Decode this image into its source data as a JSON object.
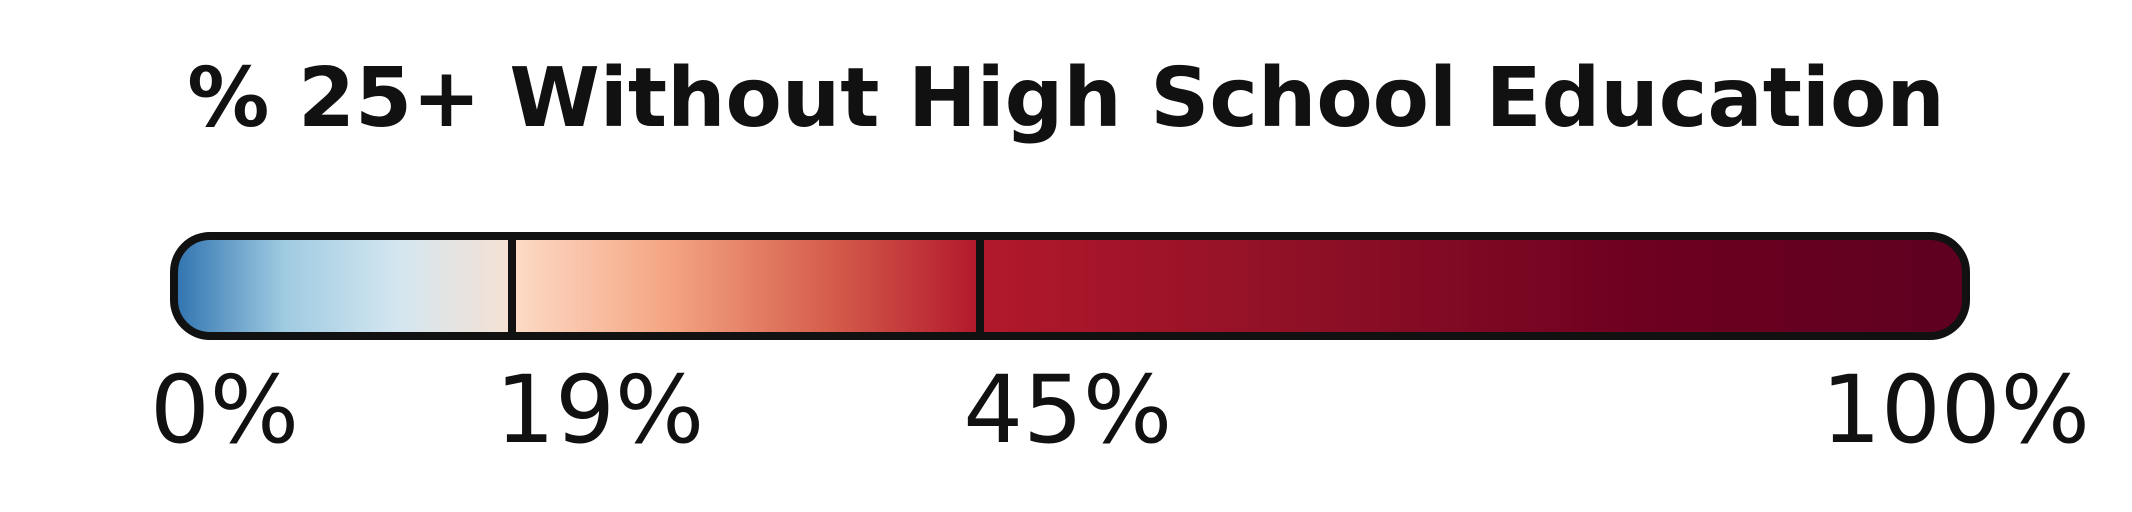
{
  "chart_data": {
    "type": "color-legend",
    "title": "% 25+ Without High School Education",
    "domain": [
      0,
      100
    ],
    "breaks": [
      19,
      45
    ],
    "ticks": [
      {
        "value": 0,
        "label": "0%"
      },
      {
        "value": 19,
        "label": "19%"
      },
      {
        "value": 45,
        "label": "45%"
      },
      {
        "value": 100,
        "label": "100%"
      }
    ],
    "segments": [
      {
        "from": 0,
        "to": 19,
        "colors": [
          "#2b6fae",
          "#9fcbe1",
          "#d4e6f0",
          "#f6e1d3"
        ]
      },
      {
        "from": 19,
        "to": 45,
        "colors": [
          "#fddbc7",
          "#f4a582",
          "#d6604d",
          "#b2182b"
        ]
      },
      {
        "from": 45,
        "to": 100,
        "colors": [
          "#b2182b",
          "#8e1026",
          "#6e0020",
          "#5e0020"
        ]
      }
    ],
    "outline_color": "#111111"
  }
}
